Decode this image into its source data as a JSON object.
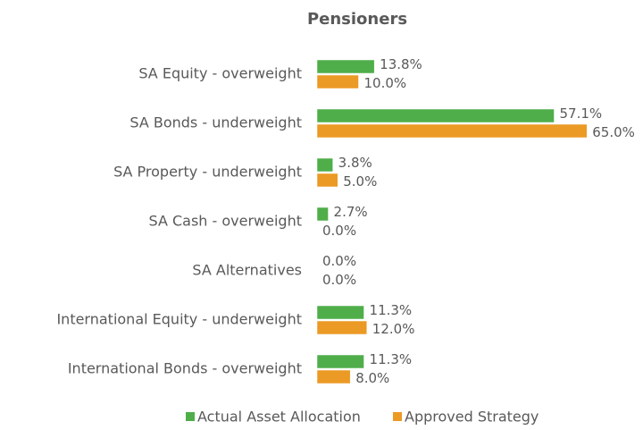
{
  "chart_data": {
    "type": "hbar",
    "title": "Pensioners",
    "categories": [
      "SA Equity - overweight",
      "SA Bonds - underweight",
      "SA Property - underweight",
      "SA Cash - overweight",
      "SA Alternatives",
      "International Equity - underweight",
      "International Bonds - overweight"
    ],
    "series": [
      {
        "name": "Actual Asset Allocation",
        "color": "#4fae4a",
        "values": [
          13.8,
          57.1,
          3.8,
          2.7,
          0.0,
          11.3,
          11.3
        ],
        "value_labels": [
          "13.8%",
          "57.1%",
          "3.8%",
          "2.7%",
          "0.0%",
          "11.3%",
          "11.3%"
        ]
      },
      {
        "name": "Approved Strategy",
        "color": "#eb9a25",
        "values": [
          10.0,
          65.0,
          5.0,
          0.0,
          0.0,
          12.0,
          8.0
        ],
        "value_labels": [
          "10.0%",
          "65.0%",
          "5.0%",
          "0.0%",
          "0.0%",
          "12.0%",
          "8.0%"
        ]
      }
    ],
    "legend": "bottom"
  }
}
